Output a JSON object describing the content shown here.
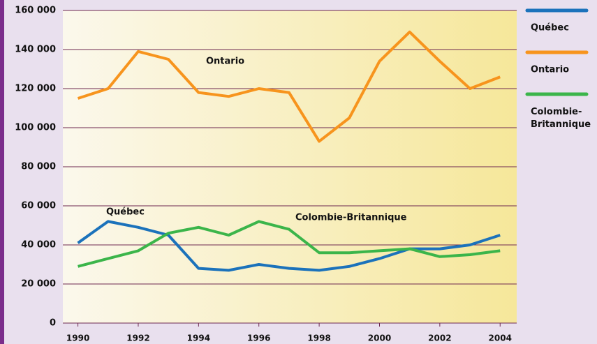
{
  "chart_data": {
    "type": "line",
    "x": [
      1990,
      1991,
      1992,
      1993,
      1994,
      1995,
      1996,
      1997,
      1998,
      1999,
      2000,
      2001,
      2002,
      2003,
      2004
    ],
    "xlim": [
      1989.5,
      2004.55
    ],
    "xticks": [
      1990,
      1992,
      1994,
      1996,
      1998,
      2000,
      2002,
      2004
    ],
    "ylim": [
      0,
      160000
    ],
    "yticks": [
      0,
      {
        "value": 20000,
        "label": "20 000"
      },
      {
        "value": 40000,
        "label": "40 000"
      },
      {
        "value": 60000,
        "label": "60 000"
      },
      {
        "value": 80000,
        "label": "80 000"
      },
      {
        "value": 100000,
        "label": "100 000"
      },
      {
        "value": 120000,
        "label": "120 000"
      },
      {
        "value": 140000,
        "label": "140 000"
      },
      {
        "value": 160000,
        "label": "160 000"
      }
    ],
    "grid": true,
    "series": [
      {
        "name": "Québec",
        "color": "#1b72bb",
        "values": [
          41000,
          52000,
          49000,
          45000,
          28000,
          27000,
          30000,
          28000,
          27000,
          29000,
          33000,
          38000,
          38000,
          40000,
          45000
        ]
      },
      {
        "name": "Ontario",
        "color": "#f7941d",
        "values": [
          115000,
          120000,
          139000,
          135000,
          118000,
          116000,
          120000,
          118000,
          93000,
          105000,
          134000,
          149000,
          134000,
          120000,
          126000
        ]
      },
      {
        "name": "Colombie-Britannique",
        "color": "#3bb54a",
        "values": [
          29000,
          33000,
          37000,
          46000,
          49000,
          45000,
          52000,
          48000,
          36000,
          36000,
          37000,
          38000,
          34000,
          35000,
          37000
        ]
      }
    ],
    "annotations": [
      "Ontario",
      "Québec",
      "Colombie-Britannique"
    ]
  }
}
